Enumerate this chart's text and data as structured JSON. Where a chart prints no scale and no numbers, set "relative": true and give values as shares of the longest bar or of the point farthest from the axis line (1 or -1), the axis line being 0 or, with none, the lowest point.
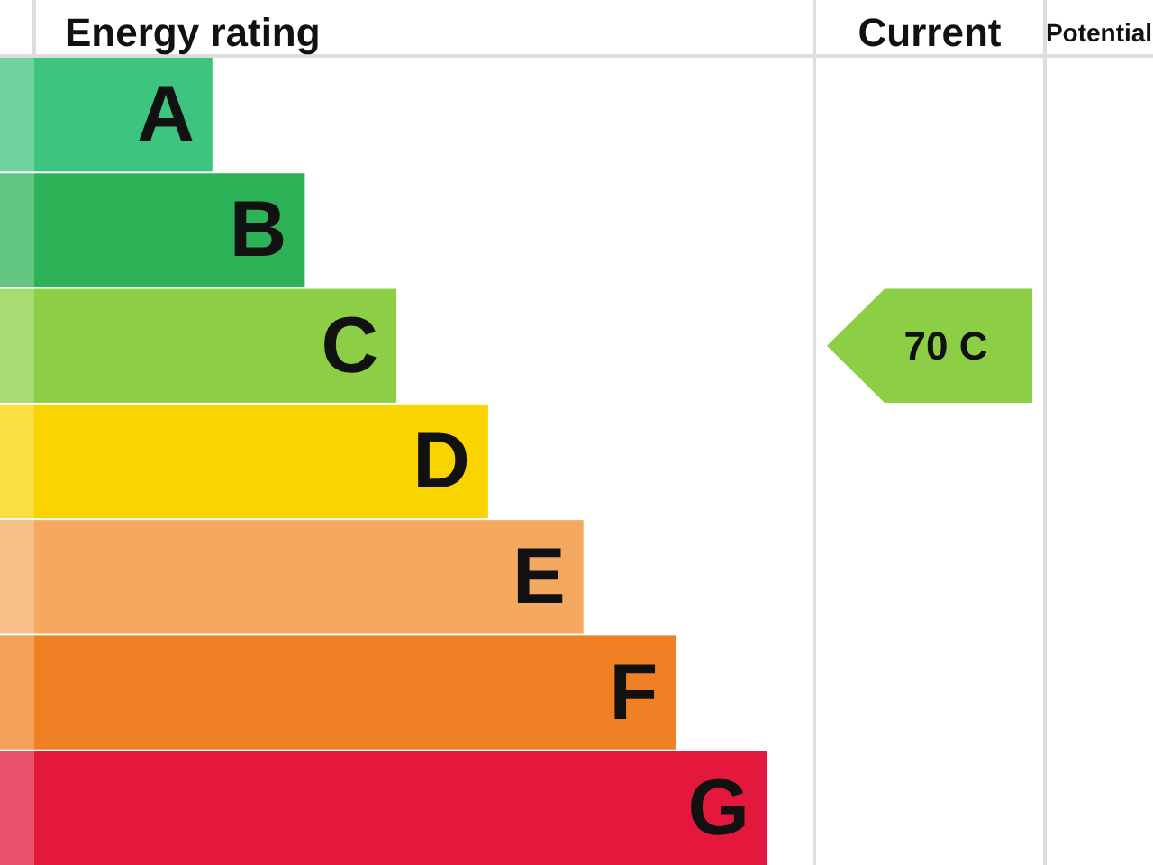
{
  "chart_data": {
    "type": "bar",
    "orientation": "horizontal",
    "relative": true,
    "title": "Energy rating",
    "categories": [
      "A",
      "B",
      "C",
      "D",
      "E",
      "F",
      "G"
    ],
    "values": [
      0.243,
      0.369,
      0.494,
      0.619,
      0.749,
      0.875,
      1
    ],
    "colors": [
      "#3dc47e",
      "#2eb257",
      "#8cce46",
      "#f9d400",
      "#f5a960",
      "#ef8024",
      "#e4183c"
    ],
    "annotations": [
      "Current",
      "70 C",
      "Potential"
    ]
  }
}
